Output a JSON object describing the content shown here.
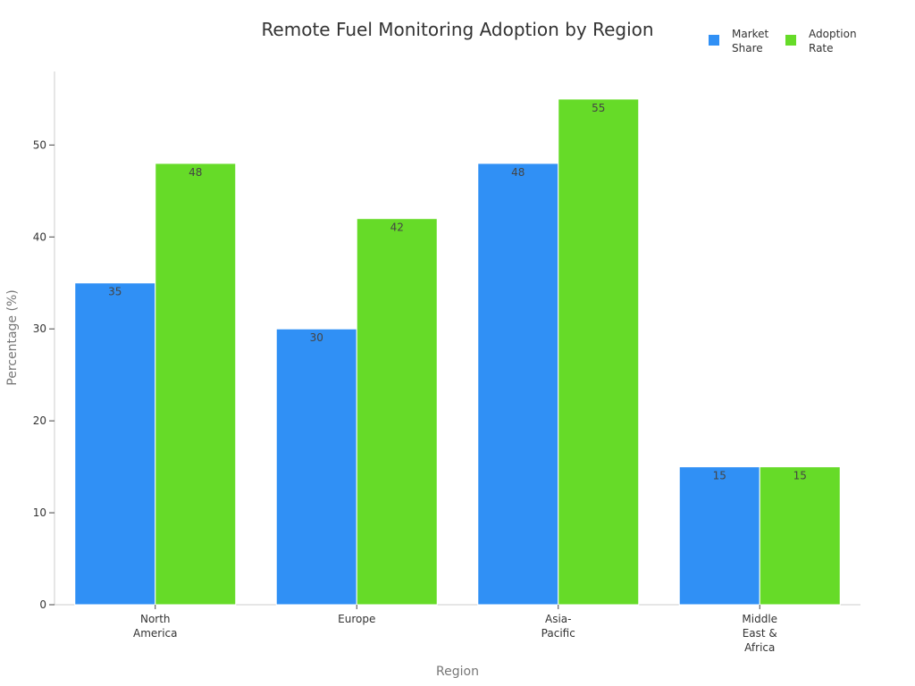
{
  "chart_data": {
    "type": "bar",
    "title": "Remote Fuel Monitoring Adoption by Region",
    "xlabel": "Region",
    "ylabel": "Percentage (%)",
    "categories": [
      [
        "North",
        "America"
      ],
      [
        "Europe"
      ],
      [
        "Asia-",
        "Pacific"
      ],
      [
        "Middle",
        "East &",
        "Africa"
      ]
    ],
    "series": [
      {
        "name": [
          "Market",
          "Share"
        ],
        "color": "#3090F5",
        "values": [
          35,
          30,
          48,
          15
        ]
      },
      {
        "name": [
          "Adoption",
          "Rate"
        ],
        "color": "#66DB28",
        "values": [
          48,
          42,
          55,
          15
        ]
      }
    ],
    "ylim": [
      0,
      58
    ],
    "yticks": [
      0,
      10,
      20,
      30,
      40,
      50
    ],
    "grid": false,
    "legend": "top-right",
    "data_labels": true
  }
}
